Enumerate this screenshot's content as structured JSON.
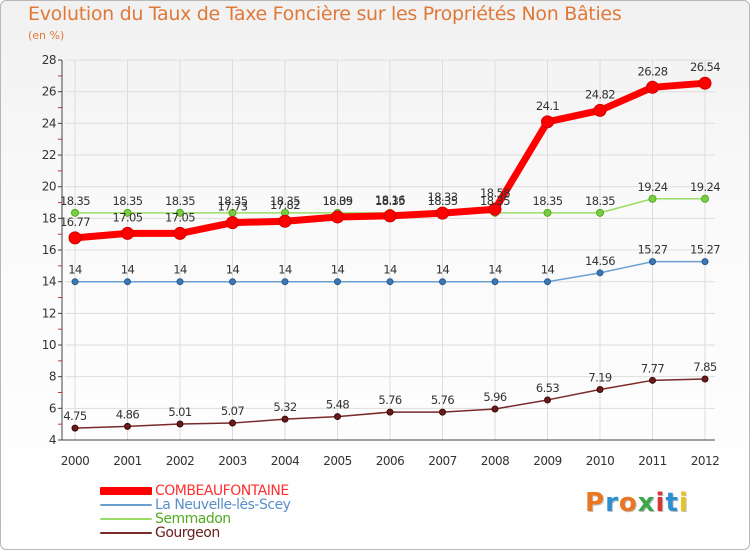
{
  "title": "Evolution du Taux de Taxe Foncière sur les Propriétés Non Bâties",
  "unit_label": "(en %)",
  "logo": {
    "text": "Proxiti",
    "colors": [
      "#e87722",
      "#2c8fd0",
      "#e87722",
      "#3aa84a",
      "#d63838",
      "#2c8fd0",
      "#e8c422"
    ]
  },
  "chart_data": {
    "type": "line",
    "title": "Evolution du Taux de Taxe Foncière sur les Propriétés Non Bâties",
    "xlabel": "",
    "ylabel": "(en %)",
    "ylim": [
      4,
      28
    ],
    "yticks": [
      4,
      6,
      8,
      10,
      12,
      14,
      16,
      18,
      20,
      22,
      24,
      26,
      28
    ],
    "grid": true,
    "categories": [
      "2000",
      "2001",
      "2002",
      "2003",
      "2004",
      "2005",
      "2006",
      "2007",
      "2008",
      "2009",
      "2010",
      "2011",
      "2012"
    ],
    "series": [
      {
        "name": "COMBEAUFONTAINE",
        "color": "#ff0000",
        "values": [
          16.77,
          17.05,
          17.05,
          17.73,
          17.82,
          18.09,
          18.16,
          18.33,
          18.58,
          24.1,
          24.82,
          26.28,
          26.54
        ],
        "labels": [
          "16.77",
          "17.05",
          "17.05",
          "17.73",
          "17.82",
          "18.09",
          "18.16",
          "18.33",
          "18.58",
          "24.1",
          "24.82",
          "26.28",
          "26.54"
        ]
      },
      {
        "name": "La Neuvelle-lès-Scey",
        "color": "#6aa0d0",
        "values": [
          14,
          14,
          14,
          14,
          14,
          14,
          14,
          14,
          14,
          14,
          14.56,
          15.27,
          15.27
        ],
        "labels": [
          "14",
          "14",
          "14",
          "14",
          "14",
          "14",
          "14",
          "14",
          "14",
          "14",
          "14.56",
          "15.27",
          "15.27"
        ]
      },
      {
        "name": "Semmadon",
        "color": "#99dd66",
        "values": [
          18.35,
          18.35,
          18.35,
          18.35,
          18.35,
          18.35,
          18.35,
          18.35,
          18.35,
          18.35,
          18.35,
          19.24,
          19.24
        ],
        "labels": [
          "18.35",
          "18.35",
          "18.35",
          "18.35",
          "18.35",
          "18.35",
          "18.35",
          "18.35",
          "18.35",
          "18.35",
          "18.35",
          "19.24",
          "19.24"
        ]
      },
      {
        "name": "Gourgeon",
        "color": "#7a2a2a",
        "values": [
          4.75,
          4.86,
          5.01,
          5.07,
          5.32,
          5.48,
          5.76,
          5.76,
          5.96,
          6.53,
          7.19,
          7.77,
          7.85
        ],
        "labels": [
          "4.75",
          "4.86",
          "5.01",
          "5.07",
          "5.32",
          "5.48",
          "5.76",
          "5.76",
          "5.96",
          "6.53",
          "7.19",
          "7.77",
          "7.85"
        ]
      }
    ]
  }
}
